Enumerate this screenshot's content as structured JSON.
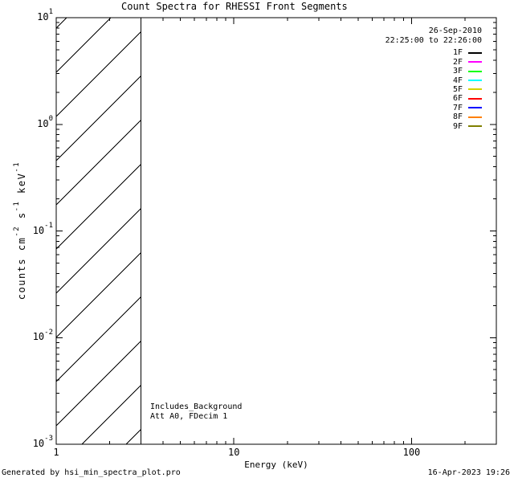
{
  "observation": {
    "date": "26-Sep-2010",
    "time_range": "22:25:00 to 22:26:00"
  },
  "footer": {
    "left": "Generated by hsi_min_spectra_plot.pro",
    "right": "16-Apr-2023 19:26"
  },
  "chart_data": {
    "type": "line",
    "title": "Count Spectra for RHESSI Front Segments",
    "xlabel": "Energy (keV)",
    "ylabel": "counts cm^-2 s^-1 keV^-1",
    "ylabel_segments": [
      {
        "text": "counts cm"
      },
      {
        "sup": "-2"
      },
      {
        "text": " s"
      },
      {
        "sup": "-1"
      },
      {
        "text": " keV"
      },
      {
        "sup": "-1"
      }
    ],
    "x_axis": {
      "scale": "log",
      "min": 1,
      "max": 300,
      "unit": "keV",
      "major_ticks": [
        {
          "value": 1,
          "label": "1"
        },
        {
          "value": 10,
          "label": "10"
        },
        {
          "value": 100,
          "label": "100"
        }
      ]
    },
    "y_axis": {
      "scale": "log",
      "min": 0.001,
      "max": 10,
      "tick_exponents": [
        1,
        0,
        -1,
        -2,
        -3
      ]
    },
    "series": [
      {
        "name": "1F",
        "color": "#000000",
        "points": []
      },
      {
        "name": "2F",
        "color": "#ff00ff",
        "points": []
      },
      {
        "name": "3F",
        "color": "#00ff00",
        "points": []
      },
      {
        "name": "4F",
        "color": "#00ffff",
        "points": []
      },
      {
        "name": "5F",
        "color": "#d4d400",
        "points": []
      },
      {
        "name": "6F",
        "color": "#ff0000",
        "points": []
      },
      {
        "name": "7F",
        "color": "#0000ff",
        "points": []
      },
      {
        "name": "8F",
        "color": "#ff8000",
        "points": []
      },
      {
        "name": "9F",
        "color": "#808000",
        "points": []
      }
    ],
    "hatched_region": {
      "x_min": 1,
      "x_max": 3,
      "y_min": 0.001,
      "y_max": 10,
      "style": "diagonal-line-fill"
    },
    "notes": [
      "Includes_Background",
      "Att A0, FDecim 1"
    ],
    "legend_position": "top-right",
    "grid": false
  }
}
